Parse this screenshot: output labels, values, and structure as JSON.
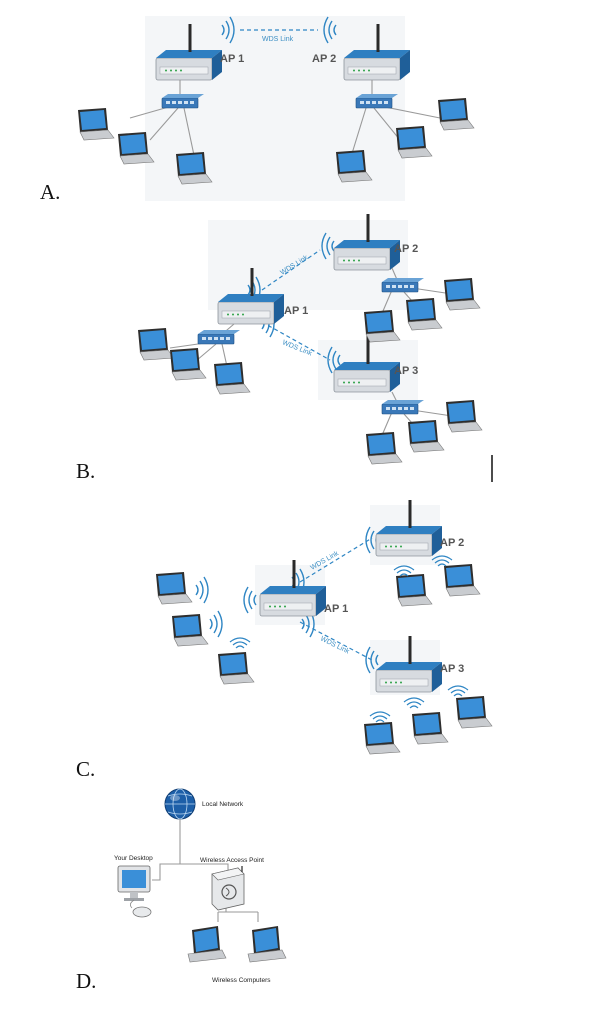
{
  "options": [
    {
      "letter": "A.",
      "ap_labels": [
        "AP 1",
        "AP 2"
      ],
      "link_labels": [
        "WDS Link"
      ]
    },
    {
      "letter": "B.",
      "ap_labels": [
        "AP 1",
        "AP 2",
        "AP 3"
      ],
      "link_labels": [
        "WDS Link",
        "WDS Link"
      ]
    },
    {
      "letter": "C.",
      "ap_labels": [
        "AP 1",
        "AP 2",
        "AP 3"
      ],
      "link_labels": [
        "WDS Link",
        "WDS Link"
      ]
    },
    {
      "letter": "D.",
      "labels": {
        "local_network": "Local Network",
        "desktop": "Your Desktop",
        "access_point": "Wireless Access Point",
        "wireless_computers": "Wireless Computers"
      }
    }
  ],
  "colors": {
    "device_blue": "#2f7fc1",
    "device_body": "#dcdfe3",
    "wifi_blue": "#2f86c4",
    "screen_blue": "#3a8fd8"
  },
  "icons": [
    "router-icon",
    "switch-icon",
    "laptop-icon",
    "wifi-waves-icon",
    "globe-icon",
    "monitor-icon",
    "mouse-icon"
  ]
}
